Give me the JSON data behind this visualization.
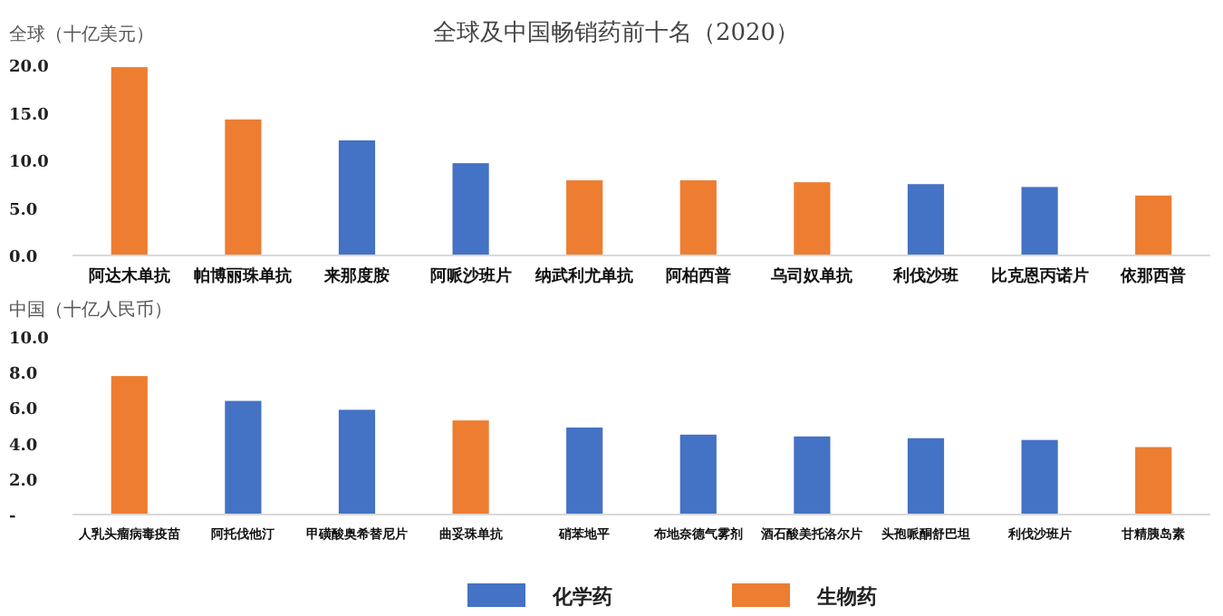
{
  "chart_data": [
    {
      "type": "bar",
      "title": "全球及中国畅销药前十名（2020）",
      "ylabel": "全球（十亿美元）",
      "categories": [
        "阿达木单抗",
        "帕博丽珠单抗",
        "来那度胺",
        "阿哌沙班片",
        "纳武利尤单抗",
        "阿柏西普",
        "乌司奴单抗",
        "利伐沙班",
        "比克恩丙诺片",
        "依那西普"
      ],
      "series": [
        {
          "color": "#4472c4",
          "values": [
            null,
            null,
            12.1,
            9.7,
            null,
            null,
            null,
            7.5,
            7.2,
            null
          ]
        },
        {
          "color": "#ed7d31",
          "values": [
            19.8,
            14.3,
            null,
            null,
            7.9,
            7.9,
            7.7,
            null,
            null,
            6.3
          ]
        }
      ],
      "ylim": [
        0,
        20
      ],
      "yticks": [
        {
          "value": 0,
          "label": "0.0"
        },
        {
          "value": 5,
          "label": "5.0"
        },
        {
          "value": 10,
          "label": "10.0"
        },
        {
          "value": 15,
          "label": "15.0"
        },
        {
          "value": 20,
          "label": "20.0"
        }
      ]
    },
    {
      "type": "bar",
      "ylabel": "中国（十亿人民币）",
      "categories": [
        "人乳头瘤病毒疫苗",
        "阿托伐他汀",
        "甲磺酸奥希替尼片",
        "曲妥珠单抗",
        "硝苯地平",
        "布地奈德气雾剂",
        "酒石酸美托洛尔片",
        "头孢哌酮舒巴坦",
        "利伐沙班片",
        "甘精胰岛素"
      ],
      "series": [
        {
          "name": "化学药",
          "color": "#4472c4",
          "values": [
            null,
            6.4,
            5.9,
            null,
            4.9,
            4.5,
            4.4,
            4.3,
            4.2,
            null
          ]
        },
        {
          "name": "生物药",
          "color": "#ed7d31",
          "values": [
            7.8,
            null,
            null,
            5.3,
            null,
            null,
            null,
            null,
            null,
            3.8
          ]
        }
      ],
      "ylim": [
        0,
        10
      ],
      "yticks": [
        {
          "value": 0,
          "label": "-"
        },
        {
          "value": 2,
          "label": "2.0"
        },
        {
          "value": 4,
          "label": "4.0"
        },
        {
          "value": 6,
          "label": "6.0"
        },
        {
          "value": 8,
          "label": "8.0"
        },
        {
          "value": 10,
          "label": "10.0"
        }
      ],
      "legend": "bottom"
    }
  ]
}
